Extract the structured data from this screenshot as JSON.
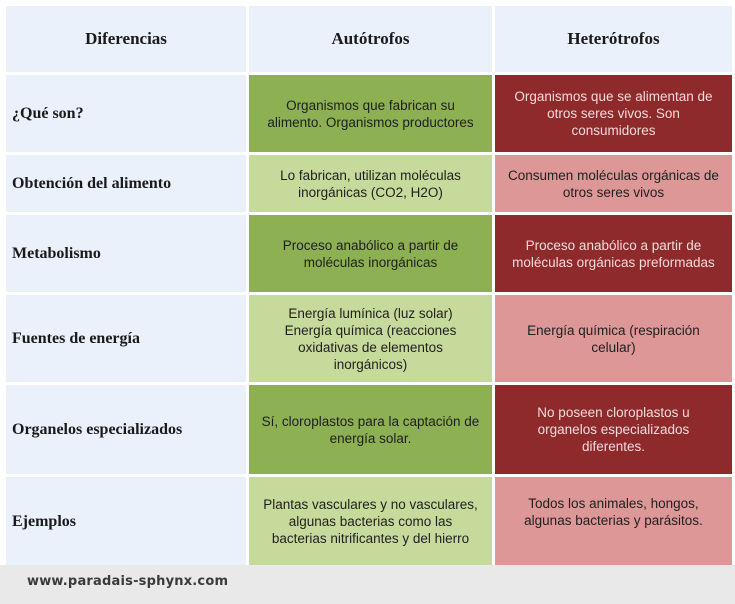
{
  "header": {
    "col1": "Diferencias",
    "col2": "Autótrofos",
    "col3": "Heterótrofos"
  },
  "colors": {
    "header_bg": "#eaf1fb",
    "auto_dark": "#8db052",
    "auto_light": "#c6da9b",
    "hetero_dark": "#8e2a2c",
    "hetero_light": "#de9797"
  },
  "rows": [
    {
      "label": "¿Qué son?",
      "auto": "Organismos que fabrican su\nalimento. Organismos productores",
      "hetero": "Organismos que se alimentan de\notros seres vivos. Son\nconsumidores"
    },
    {
      "label": "Obtención del alimento",
      "auto": "Lo fabrican, utilizan moléculas\ninorgánicas (CO2, H2O)",
      "hetero": "Consumen moléculas orgánicas de\notros seres vivos"
    },
    {
      "label": "Metabolismo",
      "auto": "Proceso anabólico a partir de\nmoléculas inorgánicas",
      "hetero": "Proceso anabólico a partir de\nmoléculas orgánicas preformadas"
    },
    {
      "label": "Fuentes de energía",
      "auto": "Energía lumínica (luz solar)\nEnergía química (reacciones\noxidativas  de elementos\ninorgánicos)",
      "hetero": "Energía química (respiración\ncelular)"
    },
    {
      "label": "Organelos especializados",
      "auto": "Sí, cloroplastos para la captación de\nenergía solar.",
      "hetero": "No poseen cloroplastos u\norganelos especializados\ndiferentes."
    },
    {
      "label": "Ejemplos",
      "auto": "Plantas vasculares y no vasculares,\nalgunas bacterias como las\nbacterias nitrificantes y del hierro",
      "hetero": "Todos los animales, hongos,\nalgunas bacterias y parásitos."
    }
  ],
  "footer": {
    "url": "www.paradais-sphynx.com"
  }
}
